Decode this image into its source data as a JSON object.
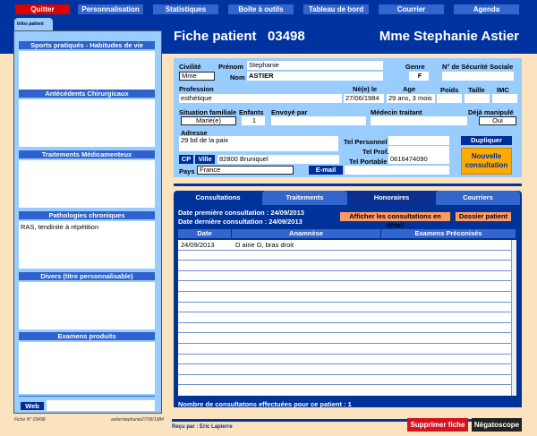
{
  "nav": {
    "items": [
      "Quitter",
      "Personnalisation",
      "Statistiques",
      "Boîte à outils",
      "Tableau de bord",
      "Courrier",
      "Agenda"
    ]
  },
  "left_panel": {
    "tab": "Infos patient",
    "sections": [
      {
        "title": "Sports pratiqués - Habitudes de vie",
        "value": ""
      },
      {
        "title": "Antécédents Chirurgicaux",
        "value": ""
      },
      {
        "title": "Traitements Médicamenteux",
        "value": ""
      },
      {
        "title": "Pathologies chroniques",
        "value": "RAS, tendinite à répétition"
      },
      {
        "title": "Divers (titre personnalisable)",
        "value": ""
      },
      {
        "title": "Examens produits",
        "value": ""
      }
    ],
    "web_label": "Web",
    "web_value": ""
  },
  "header": {
    "title": "Fiche patient",
    "number": "03498",
    "patient_name": "Mme Stephanie Astier"
  },
  "info": {
    "civilite_label": "Civilité",
    "civilite": "Mme",
    "prenom_label": "Prénom",
    "prenom": "Stephanie",
    "nom_label": "Nom",
    "nom": "ASTIER",
    "genre_label": "Genre",
    "genre": "F",
    "secu_label": "N° de Sécurité Sociale",
    "secu": "",
    "profession_label": "Profession",
    "profession": "esthétique",
    "ne_label": "Né(e) le",
    "ne": "27/06/1984",
    "age_label": "Age",
    "age": "29 ans, 3 mois",
    "poids_label": "Poids",
    "taille_label": "Taille",
    "imc_label": "IMC",
    "situation_label": "Situation familiale",
    "situation": "Marié(e)",
    "enfants_label": "Enfants",
    "enfants": "1",
    "envoye_label": "Envoyé par",
    "medecin_label": "Médecin traitant",
    "deja_label": "Déjà manipulé",
    "deja": "Oui",
    "adresse_label": "Adresse",
    "adresse": "29 bd de la paix",
    "cp_label": "CP",
    "ville_label": "Ville",
    "cp_ville": "82800   Bruniquel",
    "pays_label": "Pays",
    "pays": "France",
    "tel_perso_label": "Tel Personnel",
    "tel_prof_label": "Tel Prof.",
    "tel_port_label": "Tel Portable",
    "tel_port": "0616474090",
    "email_label": "E-mail",
    "dupliquer": "Dupliquer",
    "nouvelle": "Nouvelle consultation"
  },
  "tabs": {
    "items": [
      "Consultations",
      "Traitements",
      "Honoraires",
      "Courriers"
    ],
    "active": 0,
    "first_label": "Date première consultation :",
    "first": "24/09/2013",
    "last_label": "Date dernière consultation :",
    "last": "24/09/2013",
    "afficher": "Afficher les consultations en détail",
    "dossier": "Dossier patient",
    "columns": [
      "Date",
      "Anamnèse",
      "Examens Préconisés"
    ],
    "rows": [
      {
        "date": "24/09/2013",
        "anamnese": "D aine G, bras droit",
        "examens": ""
      }
    ],
    "count_text": "Nombre de consultatons effectuées pour ce patient : 1"
  },
  "footer": {
    "fiche": "Fiche N° 03498",
    "ident": "astierstephanie27/06/1984",
    "recu_label": "Reçu par :",
    "recu": "Eric Lapierre",
    "supprimer": "Supprimer fiche",
    "negatoscope": "Négatoscope"
  },
  "colors": {
    "navy": "#0033a0",
    "light_blue": "#99ccff",
    "beige": "#fbe3bf",
    "red": "#e00000",
    "orange": "#ffaa00"
  }
}
